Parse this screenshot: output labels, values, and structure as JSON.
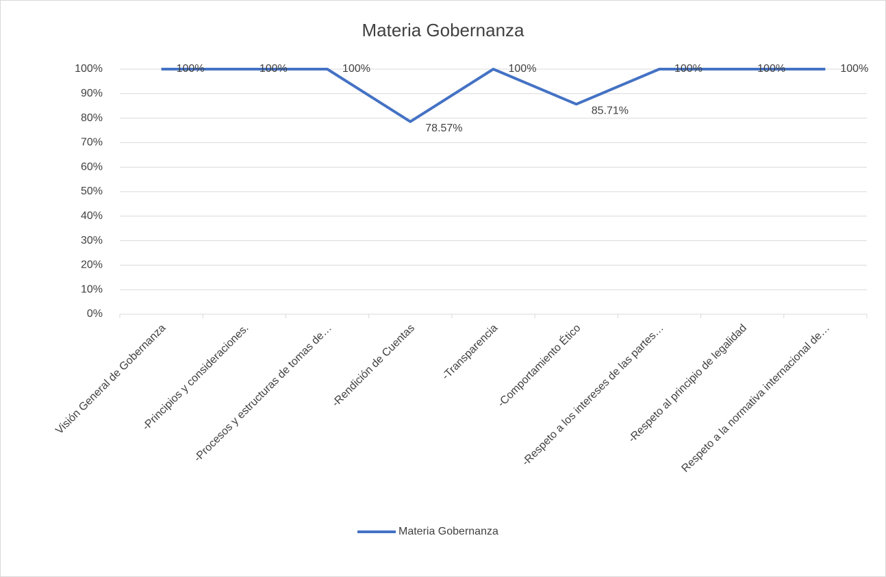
{
  "chart_data": {
    "type": "line",
    "title": "Materia Gobernanza",
    "categories": [
      "Visión General de Gobernanza",
      "-Principios y consideraciones.",
      "-Procesos y estructuras de tomas de…",
      "-Rendición de Cuentas",
      "-Transparencia",
      "-Comportamiento Ético",
      "-Respeto a los intereses de las partes…",
      "-Respeto al principio de legalidad",
      "Respeto a la normativa internacional de…"
    ],
    "series": [
      {
        "name": "Materia Gobernanza",
        "color": "#4472c4",
        "values": [
          100,
          100,
          100,
          78.57,
          100,
          85.71,
          100,
          100,
          100
        ],
        "value_labels": [
          "100%",
          "100%",
          "100%",
          "78.57%",
          "100%",
          "85.71%",
          "100%",
          "100%",
          "100%"
        ]
      }
    ],
    "ylim": [
      0,
      100
    ],
    "yticks": [
      {
        "value": 0,
        "label": "0%"
      },
      {
        "value": 10,
        "label": "10%"
      },
      {
        "value": 20,
        "label": "20%"
      },
      {
        "value": 30,
        "label": "30%"
      },
      {
        "value": 40,
        "label": "40%"
      },
      {
        "value": 50,
        "label": "50%"
      },
      {
        "value": 60,
        "label": "60%"
      },
      {
        "value": 70,
        "label": "70%"
      },
      {
        "value": 80,
        "label": "80%"
      },
      {
        "value": 90,
        "label": "90%"
      },
      {
        "value": 100,
        "label": "100%"
      }
    ],
    "grid": true,
    "legend": "bottom"
  }
}
